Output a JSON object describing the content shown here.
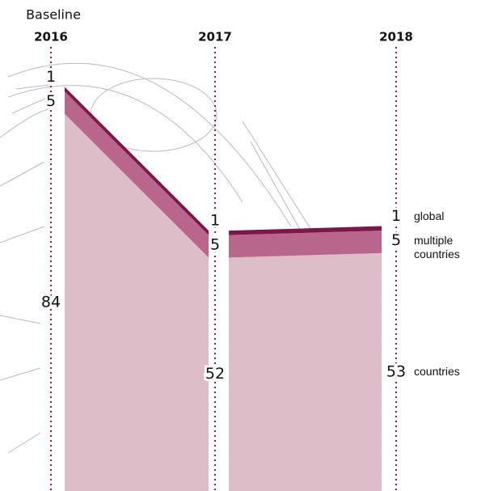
{
  "chart_data": {
    "type": "area",
    "stacked": true,
    "annotation": "Baseline",
    "categories": [
      "2016",
      "2017",
      "2018"
    ],
    "series": [
      {
        "name": "countries",
        "color": "#dcbdc8",
        "values": [
          84,
          52,
          53
        ]
      },
      {
        "name": "multiple countries",
        "color": "#b9668c",
        "values": [
          5,
          5,
          5
        ]
      },
      {
        "name": "global",
        "color": "#7f1549",
        "values": [
          1,
          1,
          1
        ]
      }
    ]
  }
}
